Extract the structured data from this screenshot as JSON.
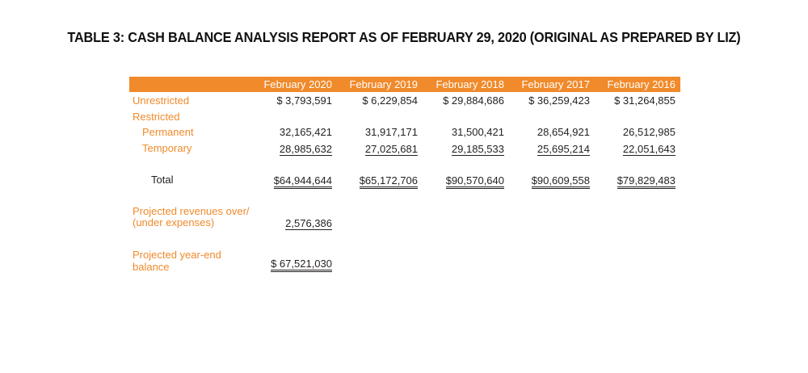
{
  "title": "TABLE 3: CASH BALANCE ANALYSIS REPORT AS OF FEBRUARY 29, 2020 (ORIGINAL AS PREPARED BY LIZ)",
  "columns": [
    "February 2020",
    "February 2019",
    "February 2018",
    "February 2017",
    "February 2016"
  ],
  "rows": {
    "unrestricted": {
      "label": "Unrestricted",
      "values": [
        "$  3,793,591",
        "$  6,229,854",
        "$ 29,884,686",
        "$ 36,259,423",
        "$ 31,264,855"
      ]
    },
    "restricted": {
      "label": "Restricted"
    },
    "permanent": {
      "label": "Permanent",
      "values": [
        "32,165,421",
        "31,917,171",
        "31,500,421",
        "28,654,921",
        "26,512,985"
      ]
    },
    "temporary": {
      "label": "Temporary",
      "values": [
        "28,985,632",
        "27,025,681",
        "29,185,533",
        "25,695,214",
        "22,051,643"
      ]
    },
    "total": {
      "label": "Total",
      "values": [
        "$64,944,644",
        "$65,172,706",
        "$90,570,640",
        "$90,609,558",
        "$79,829,483"
      ]
    }
  },
  "projected_revenues": {
    "label_line1": "Projected revenues over/",
    "label_line2": "(under expenses)",
    "value": "2,576,386"
  },
  "projected_balance": {
    "label_line1": "Projected year-end",
    "label_line2": "balance",
    "value": "$ 67,521,030"
  },
  "colors": {
    "accent": "#f08a2b",
    "text": "#231f20"
  }
}
